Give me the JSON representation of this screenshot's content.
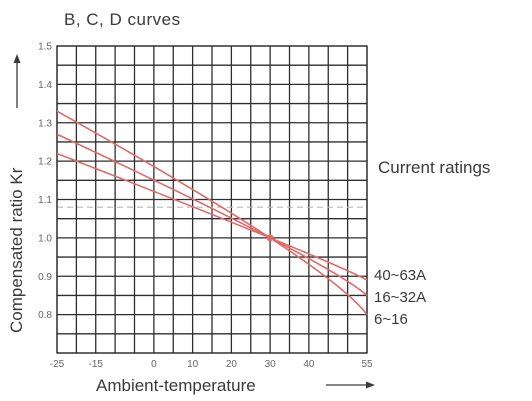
{
  "chart_data": {
    "type": "line",
    "title": "B, C, D curves",
    "xlabel": "Ambient-temperature",
    "ylabel": "Compensated ratio Kr",
    "side_label": "Current ratings",
    "xlim": [
      -25,
      55
    ],
    "ylim": [
      0.7,
      1.5
    ],
    "x_ticks": [
      -25,
      -15,
      0,
      10,
      20,
      30,
      40,
      55
    ],
    "x_tick_labels": [
      "-25",
      "-15",
      "0",
      "10",
      "20",
      "30",
      "40",
      "55"
    ],
    "y_ticks": [
      0.8,
      0.9,
      1.0,
      1.1,
      1.2,
      1.3,
      1.4,
      1.5
    ],
    "y_tick_labels": [
      "0.8",
      "0.9",
      "1.0",
      "1.1",
      "1.2",
      "1.3",
      "1.4",
      "1.5"
    ],
    "grid": true,
    "reference_line": {
      "y": 1.08,
      "style": "dashed"
    },
    "line_color": "#e06a6a",
    "series": [
      {
        "name": "40~63A",
        "x": [
          -25,
          30,
          55
        ],
        "y": [
          1.22,
          1.0,
          0.89
        ]
      },
      {
        "name": "16~32A",
        "x": [
          -25,
          30,
          55
        ],
        "y": [
          1.27,
          1.0,
          0.85
        ]
      },
      {
        "name": "6~16",
        "x": [
          -25,
          30,
          55
        ],
        "y": [
          1.33,
          1.0,
          0.8
        ]
      }
    ],
    "marker": {
      "x": 30,
      "y": 1.0
    }
  }
}
